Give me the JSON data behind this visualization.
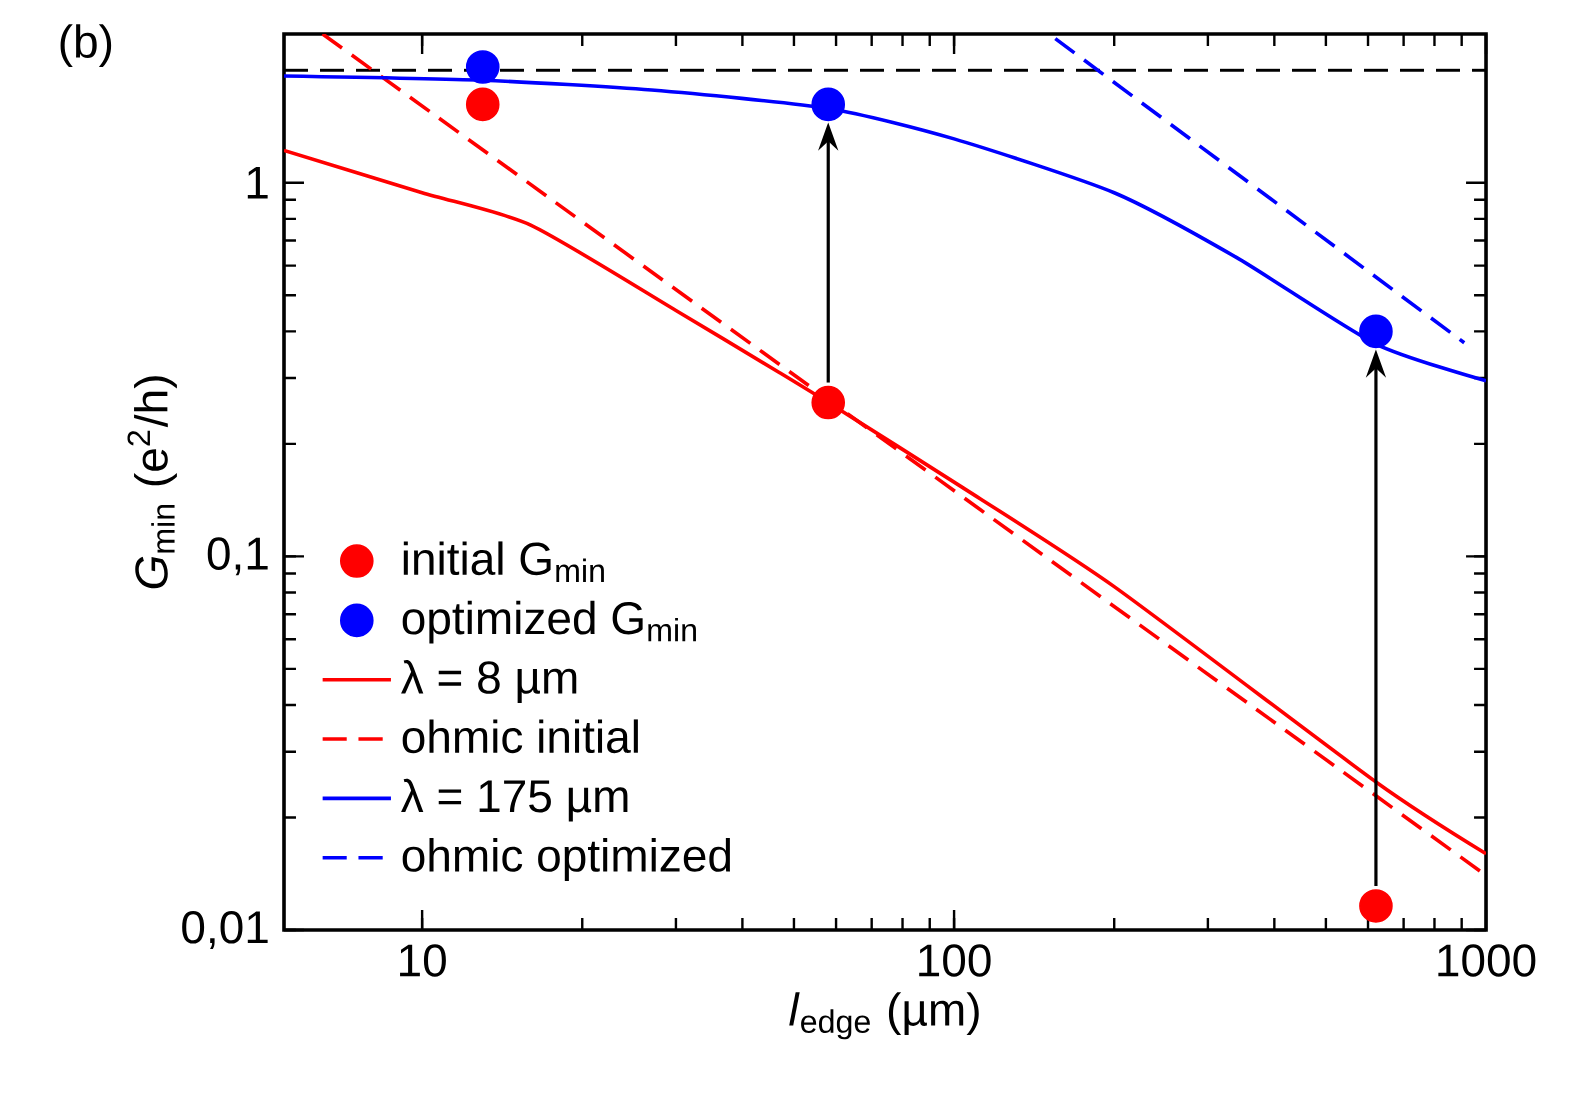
{
  "chart_data": {
    "type": "line",
    "title": "(b)",
    "xlabel": "*l*$_{edge}$ (µm)",
    "ylabel": "*G*$_{min}$ (e$^{2}$/h)",
    "log": "xy",
    "xlim": [
      5.5,
      1000
    ],
    "ylim": [
      0.01,
      2.5
    ],
    "xticks": [
      10,
      100,
      1000
    ],
    "yticks": [
      {
        "value": 0.01,
        "label": "0,01"
      },
      {
        "value": 0.1,
        "label": "0,1"
      },
      1
    ],
    "grid": false,
    "legend": "bottom left",
    "ref_lines": [
      {
        "axis": "y",
        "value": 2,
        "color": "#000000",
        "line_style": "dashed"
      }
    ],
    "series": [
      {
        "name": "initial G$_{min}$",
        "type": "scatter",
        "marker": "circle",
        "color": "#ff0000",
        "x": [
          13,
          58,
          621
        ],
        "values": [
          1.62,
          0.258,
          0.0116
        ]
      },
      {
        "name": "optimized G$_{min}$",
        "type": "scatter",
        "marker": "circle",
        "color": "#0000ff",
        "x": [
          13,
          58,
          621
        ],
        "values": [
          2.04,
          1.62,
          0.4
        ]
      },
      {
        "name": "λ = 8 µm",
        "type": "line",
        "line_style": "solid",
        "color": "#ff0000",
        "x": [
          5.5,
          10,
          16,
          30,
          47,
          58,
          100,
          200,
          621,
          1000
        ],
        "values": [
          1.22,
          0.94,
          0.77,
          0.455,
          0.31,
          0.258,
          0.158,
          0.083,
          0.0249,
          0.016
        ]
      },
      {
        "name": "ohmic initial",
        "line_style": "dashed",
        "color": "#ff0000",
        "x": [
          6.5,
          1000
        ],
        "values": [
          2.5,
          0.014
        ]
      },
      {
        "name": "λ = 175 µm",
        "type": "line",
        "line_style": "solid",
        "color": "#0000ff",
        "x": [
          5.5,
          13,
          27,
          58,
          100,
          200,
          340,
          621,
          1000
        ],
        "values": [
          1.93,
          1.88,
          1.77,
          1.58,
          1.31,
          0.94,
          0.63,
          0.37,
          0.295
        ]
      },
      {
        "name": "ohmic optimized",
        "line_style": "dashed",
        "color": "#0000ff",
        "x": [
          155,
          910
        ],
        "values": [
          2.43,
          0.373
        ]
      }
    ]
  }
}
